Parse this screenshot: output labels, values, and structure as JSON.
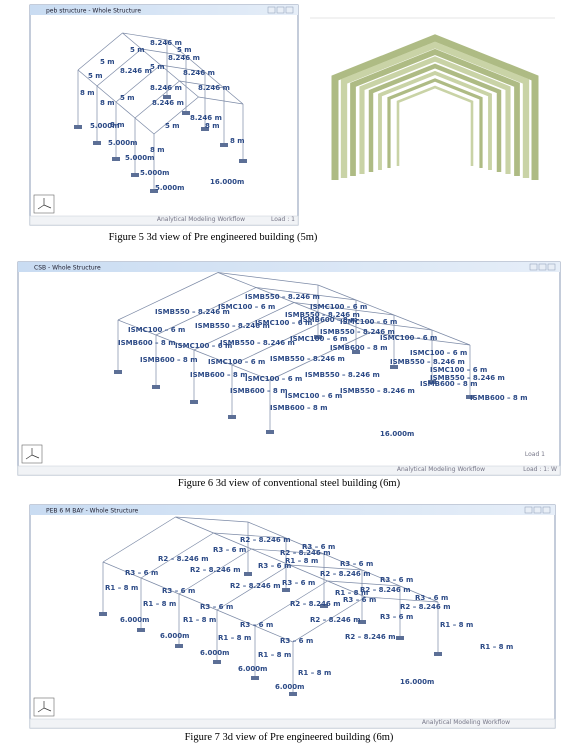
{
  "figures": [
    {
      "window_title": "peb structure - Whole Structure",
      "labels": [
        "8.246 m",
        "5 m",
        "5 m",
        "8.246 m",
        "5 m",
        "8.246 m",
        "5 m",
        "8.246 m",
        "5 m",
        "8.246 m",
        "8.246 m",
        "5 m",
        "8.246 m",
        "8 m",
        "8 m",
        "8.246 m",
        "5 m",
        "5.000m",
        "8 m",
        "5.000m",
        "5.000m",
        "8 m",
        "5.000m",
        "5.000m",
        "8 m",
        "16.000m",
        "8 m"
      ],
      "status": [
        "Analytical Modeling Workflow",
        "Load : 1"
      ],
      "caption": "Figure 5 3d view of Pre engineered building (5m)"
    },
    {
      "window_title": "CSB - Whole Structure",
      "labels": [
        "ISMB550 – 8.246 m",
        "ISMC100 – 6 m",
        "ISMC100 – 6 m",
        "ISMB550 – 8.246 m",
        "ISMB550 – 8.246 m",
        "ISMC100 – 6 m",
        "ISMB550 – 8.246 m",
        "ISMC100 – 6 m",
        "ISMB600 – 8 m",
        "ISMC100 – 6 m",
        "ISMB550 – 8.246 m",
        "ISMB600 – 8 m",
        "ISMC100 – 6 m",
        "ISMB550 – 8.246 m",
        "ISMC100 – 6 m",
        "ISMB600 – 8 m",
        "ISMC100 – 6 m",
        "ISMB600 – 8 m",
        "ISMC100 – 6 m",
        "ISMB550 – 8.246 m",
        "ISMC100 – 6 m",
        "ISMB550 – 8.246 m",
        "ISMB600 – 8 m",
        "ISMC100 – 6 m",
        "ISMB550 – 8.246 m",
        "ISMC100 – 6 m",
        "ISMB550 – 8.246 m",
        "ISMB600 – 8 m",
        "ISMC100 – 6 m",
        "ISMB550 – 8.246 m",
        "ISMB600 – 8 m",
        "ISMB600 – 8 m",
        "ISMB600 – 8 m",
        "16.000m"
      ],
      "status": [
        "Analytical Modeling Workflow",
        "Load : 1: W",
        "Load 1"
      ],
      "caption": "Figure 6 3d view of conventional steel building (6m)"
    },
    {
      "window_title": "PEB 6 M BAY - Whole Structure",
      "labels": [
        "R2 – 8.246 m",
        "R3 – 6 m",
        "R2 – 8.246 m",
        "R3 – 6 m",
        "R2 – 8.246 m",
        "R3 – 6 m",
        "R1 – 8 m",
        "R3 – 6 m",
        "R3 – 6 m",
        "R2 – 8.246 m",
        "R2 – 8.246 m",
        "R3 – 6 m",
        "R3 – 6 m",
        "R1 – 8 m",
        "R3 – 6 m",
        "R2 – 8.246 m",
        "R1 – 8 m",
        "R2 – 8.246 m",
        "R3 – 6 m",
        "R1 – 8 m",
        "R2 – 8.246 m",
        "R3 – 6 m",
        "R3 – 6 m",
        "R2 – 8.246 m",
        "6.000m",
        "R1 – 8 m",
        "R3 – 6 m",
        "R2 – 8.246 m",
        "R3 – 6 m",
        "R1 – 8 m",
        "6.000m",
        "R1 – 8 m",
        "R3 – 6 m",
        "R2 – 8.246 m",
        "6.000m",
        "R1 – 8 m",
        "6.000m",
        "R1 – 8 m",
        "R1 – 8 m",
        "6.000m",
        "16.000m"
      ],
      "status": [
        "Analytical Modeling Workflow"
      ],
      "caption": "Figure 7 3d view of Pre engineered building (6m)"
    }
  ]
}
